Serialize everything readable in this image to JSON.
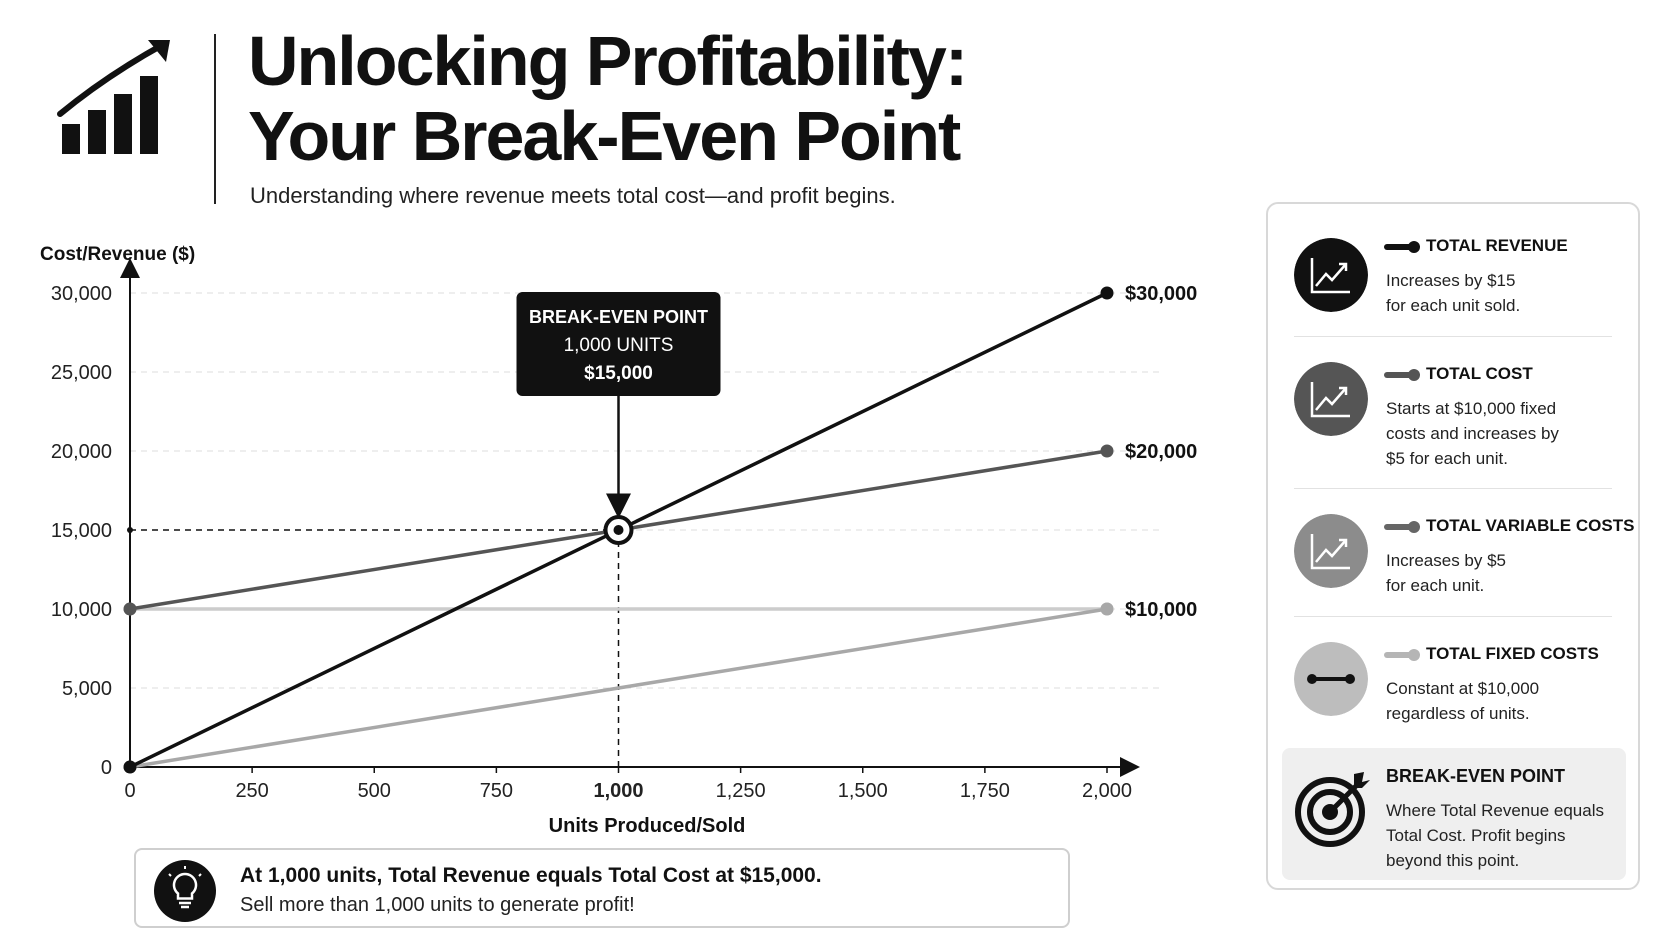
{
  "header": {
    "title_line1": "Unlocking Profitability:",
    "title_line2": "Your Break-Even Point",
    "subtitle": "Understanding where revenue meets total cost—and profit begins.",
    "logo_icon": "growth-chart-icon"
  },
  "chart_data": {
    "type": "line",
    "xlabel": "Units Produced/Sold",
    "ylabel": "Cost/Revenue ($)",
    "xlim": [
      0,
      2000
    ],
    "ylim": [
      0,
      30000
    ],
    "x_ticks": [
      0,
      250,
      500,
      750,
      1000,
      1250,
      1500,
      1750,
      2000
    ],
    "x_tick_labels": [
      "0",
      "250",
      "500",
      "750",
      "1,000",
      "1,250",
      "1,500",
      "1,750",
      "2,000"
    ],
    "y_ticks": [
      0,
      5000,
      10000,
      15000,
      20000,
      25000,
      30000
    ],
    "y_tick_labels": [
      "0",
      "5,000",
      "10,000",
      "15,000",
      "20,000",
      "25,000",
      "30,000"
    ],
    "grid": true,
    "series": [
      {
        "name": "TOTAL REVENUE",
        "x": [
          0,
          2000
        ],
        "y": [
          0,
          30000
        ],
        "color": "#111111",
        "end_label": "$30,000"
      },
      {
        "name": "TOTAL COST",
        "x": [
          0,
          2000
        ],
        "y": [
          10000,
          20000
        ],
        "color": "#555555",
        "end_label": "$20,000"
      },
      {
        "name": "TOTAL VARIABLE COSTS",
        "x": [
          0,
          2000
        ],
        "y": [
          0,
          10000
        ],
        "color": "#a8a8a8",
        "end_label": ""
      },
      {
        "name": "TOTAL FIXED COSTS",
        "x": [
          0,
          2000
        ],
        "y": [
          10000,
          10000
        ],
        "color": "#cccccc",
        "end_label": "$10,000"
      }
    ],
    "break_even": {
      "x": 1000,
      "y": 15000,
      "label_line1": "BREAK-EVEN POINT",
      "label_line2": "1,000 UNITS",
      "label_line3": "$15,000"
    }
  },
  "note": {
    "icon": "lightbulb-icon",
    "strong": "At 1,000 units, Total Revenue equals Total Cost at $15,000.",
    "text": "Sell more than 1,000 units to generate profit!"
  },
  "legend": {
    "items": [
      {
        "name": "TOTAL REVENUE",
        "desc_line1": "Increases by $15",
        "desc_line2": "for each unit sold.",
        "desc_line3": "",
        "icon": "trend-up-icon",
        "color": "#111111",
        "circle_color": "#111111"
      },
      {
        "name": "TOTAL COST",
        "desc_line1": "Starts at $10,000 fixed",
        "desc_line2": "costs and increases by",
        "desc_line3": "$5 for each unit.",
        "icon": "trend-up-icon",
        "color": "#555555",
        "circle_color": "#555555"
      },
      {
        "name": "TOTAL VARIABLE COSTS",
        "desc_line1": "Increases by $5",
        "desc_line2": "for each unit.",
        "desc_line3": "",
        "icon": "trend-up-icon",
        "color": "#666666",
        "circle_color": "#8c8c8c"
      },
      {
        "name": "TOTAL FIXED COSTS",
        "desc_line1": "Constant at $10,000",
        "desc_line2": "regardless of units.",
        "desc_line3": "",
        "icon": "flat-line-icon",
        "color": "#b5b5b5",
        "circle_color": "#bdbdbd"
      }
    ],
    "break_even": {
      "name": "BREAK-EVEN POINT",
      "desc_line1": "Where Total Revenue equals",
      "desc_line2": "Total Cost. Profit begins",
      "desc_line3": "beyond this point.",
      "icon": "target-icon"
    }
  }
}
